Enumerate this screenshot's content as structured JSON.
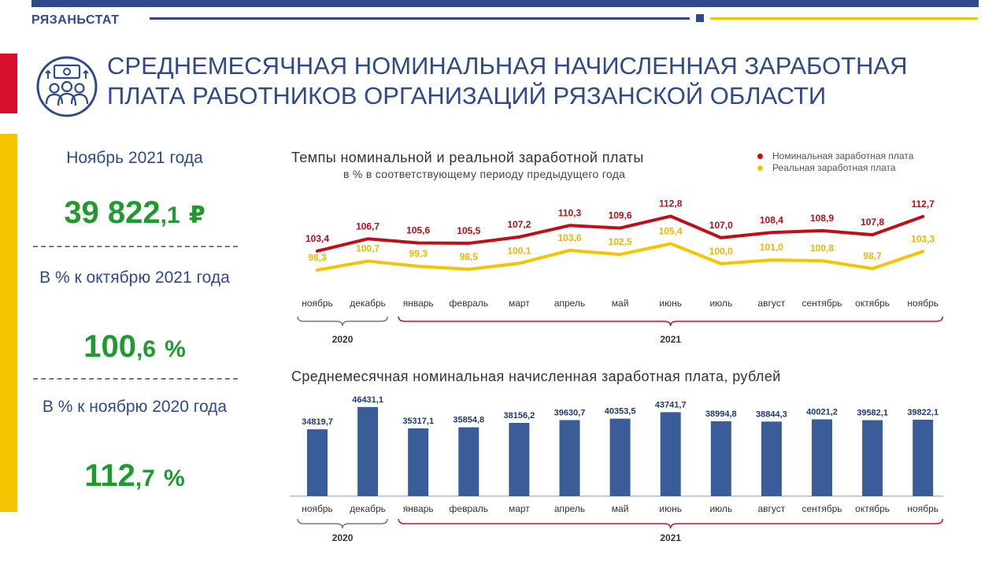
{
  "header": {
    "brand": "РЯЗАНЬСТАТ"
  },
  "title": "Среднемесячная номинальная начисленная заработная плата работников организаций Рязанской области",
  "colors": {
    "primary": "#2f4a8a",
    "accent_red": "#d8102c",
    "accent_yellow": "#f5c400",
    "green": "#1f9a2e",
    "bar": "#3a5d99"
  },
  "icons": {
    "logo": "wage-workers-icon"
  },
  "left_panel": {
    "period_label": "Ноябрь 2021 года",
    "wage_main": "39 822",
    "wage_decimal": ",1",
    "currency": "₽",
    "mom_label": "В % к октябрю 2021 года",
    "mom_main": "100",
    "mom_decimal": ",6",
    "mom_unit": "%",
    "yoy_label": "В % к ноябрю 2020 года",
    "yoy_main": "112",
    "yoy_decimal": ",7",
    "yoy_unit": "%"
  },
  "chart_data": [
    {
      "type": "line",
      "title": "Темпы номинальной и реальной заработной платы",
      "subtitle": "в % в соответствующему периоду предыдущего года",
      "categories": [
        "ноябрь",
        "декабрь",
        "январь",
        "февраль",
        "март",
        "апрель",
        "май",
        "июнь",
        "июль",
        "август",
        "сентябрь",
        "октябрь",
        "ноябрь"
      ],
      "series": [
        {
          "name": "Номинальная заработная плата",
          "color": "#c00d18",
          "values": [
            103.4,
            106.7,
            105.6,
            105.5,
            107.2,
            110.3,
            109.6,
            112.8,
            107.0,
            108.4,
            108.9,
            107.8,
            112.7
          ],
          "labels": [
            "103,4",
            "106,7",
            "105,6",
            "105,5",
            "107,2",
            "110,3",
            "109,6",
            "112,8",
            "107,0",
            "108,4",
            "108,9",
            "107,8",
            "112,7"
          ]
        },
        {
          "name": "Реальная заработная плата",
          "color": "#f5c400",
          "values": [
            98.3,
            100.7,
            99.3,
            98.5,
            100.1,
            103.6,
            102.5,
            105.4,
            100.0,
            101.0,
            100.8,
            98.7,
            103.3
          ],
          "labels": [
            "98,3",
            "100,7",
            "99,3",
            "98,5",
            "100,1",
            "103,6",
            "102,5",
            "105,4",
            "100,0",
            "101,0",
            "100,8",
            "98,7",
            "103,3"
          ]
        }
      ],
      "ylim": [
        90,
        118
      ],
      "legend": "top-right",
      "groups": [
        {
          "label": "2020",
          "start": 0,
          "end": 1
        },
        {
          "label": "2021",
          "start": 2,
          "end": 12
        }
      ]
    },
    {
      "type": "bar",
      "title": "Среднемесячная номинальная начисленная заработная плата, рублей",
      "categories": [
        "ноябрь",
        "декабрь",
        "январь",
        "февраль",
        "март",
        "апрель",
        "май",
        "июнь",
        "июль",
        "август",
        "сентябрь",
        "октябрь",
        "ноябрь"
      ],
      "values": [
        34819.7,
        46431.1,
        35317.1,
        35854.8,
        38156.2,
        39630.7,
        40353.5,
        43741.7,
        38994.8,
        38844.3,
        40021.2,
        39582.1,
        39822.1
      ],
      "labels": [
        "34819,7",
        "46431,1",
        "35317,1",
        "35854,8",
        "38156,2",
        "39630,7",
        "40353,5",
        "43741,7",
        "38994,8",
        "38844,3",
        "40021,2",
        "39582,1",
        "39822,1"
      ],
      "ylim": [
        0,
        48000
      ],
      "color": "#3a5d99",
      "groups": [
        {
          "label": "2020",
          "start": 0,
          "end": 1
        },
        {
          "label": "2021",
          "start": 2,
          "end": 12
        }
      ]
    }
  ]
}
